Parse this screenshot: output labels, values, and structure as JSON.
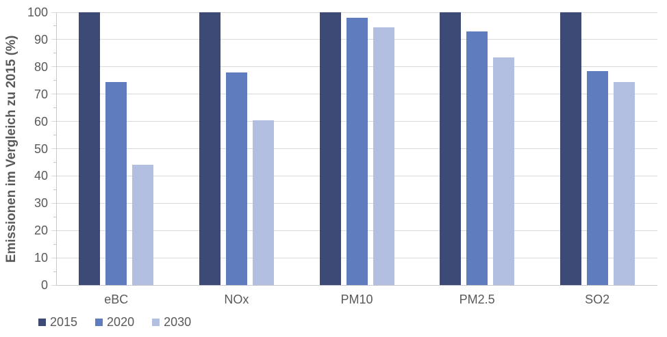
{
  "chart_data": {
    "type": "bar",
    "title": "",
    "categories": [
      "eBC",
      "NOx",
      "PM10",
      "PM2.5",
      "SO2"
    ],
    "series": [
      {
        "name": "2015",
        "color": "#3E4A76",
        "values": [
          100,
          100,
          100,
          100,
          100
        ]
      },
      {
        "name": "2020",
        "color": "#5F7CBE",
        "values": [
          74.5,
          78,
          98,
          93,
          78.5
        ]
      },
      {
        "name": "2030",
        "color": "#B3BFE0",
        "values": [
          44,
          60.5,
          94.5,
          83.5,
          74.5
        ]
      }
    ],
    "xlabel": "",
    "ylabel": "Emissionen im Vergleich zu 2015 (%)",
    "ylim": [
      0,
      100
    ],
    "yticks": [
      0,
      10,
      20,
      30,
      40,
      50,
      60,
      70,
      80,
      90,
      100
    ],
    "minor_tick_step": 5,
    "grid": "horizontal",
    "legend_position": "bottom-left"
  },
  "colors": {
    "grid": "#D9D9D9",
    "axis": "#C9C9C9",
    "text": "#595959"
  }
}
